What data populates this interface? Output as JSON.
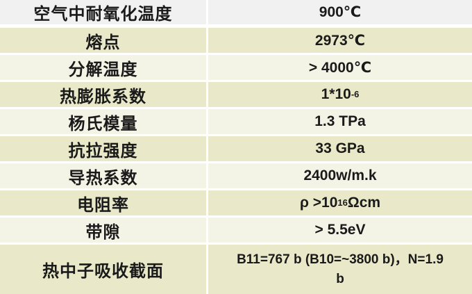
{
  "table": {
    "description_rows": [
      {
        "label": "空气中耐氧化温度",
        "value": "900℃"
      },
      {
        "label": "熔点",
        "value": "2973℃"
      },
      {
        "label": "分解温度",
        "value": "> 4000℃"
      },
      {
        "label": "热膨胀系数",
        "value": {
          "base": "1*10",
          "sup": "-6"
        }
      },
      {
        "label": "杨氏模量",
        "value": "1.3 TPa"
      },
      {
        "label": "抗拉强度",
        "value": "33 GPa"
      },
      {
        "label": "导热系数",
        "value": "2400w/m.k"
      },
      {
        "label": "电阻率",
        "value": {
          "base": "ρ >10",
          "sup": "16",
          "tail": "Ωcm"
        }
      },
      {
        "label": "带隙",
        "value": "> 5.5eV"
      },
      {
        "label": "热中子吸收截面",
        "value": {
          "line1": "B11=767 b (B10=~3800 b)，N=1.9",
          "line2": "b"
        }
      }
    ],
    "colors": {
      "first_row_bg": "#f1f1f2",
      "band_dark_bg": "#e9e9c9",
      "band_light_bg": "#f4f4e6",
      "separator": "#ffffff",
      "text": "#1a1a1a"
    }
  }
}
